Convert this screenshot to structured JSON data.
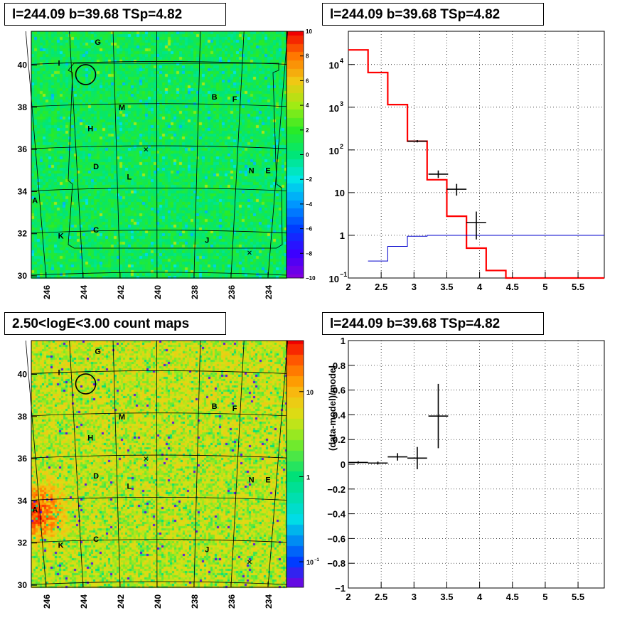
{
  "panels": {
    "map_top": {
      "title": "l=244.09 b=39.68 TSp=4.82",
      "x_ticks": [
        "246",
        "244",
        "242",
        "240",
        "238",
        "236",
        "234"
      ],
      "y_ticks": [
        "30",
        "32",
        "34",
        "36",
        "38",
        "40"
      ],
      "colorbar_ticks": [
        "10",
        "8",
        "6",
        "4",
        "2",
        "0",
        "−2",
        "−4",
        "−6",
        "−8",
        "−10"
      ],
      "source_labels": [
        "G",
        "I",
        "M",
        "B",
        "F",
        "H",
        "D",
        "L",
        "N",
        "E",
        "A",
        "C",
        "K",
        "J"
      ]
    },
    "spectrum": {
      "title": "l=244.09 b=39.68 TSp=4.82",
      "x_ticks": [
        "2",
        "2.5",
        "3",
        "3.5",
        "4",
        "4.5",
        "5",
        "5.5"
      ],
      "y_ticks_exp": [
        "10",
        "10",
        "10",
        "10"
      ],
      "y_ticks_exp_sup": [
        "4",
        "3",
        "2",
        "−1"
      ],
      "y_ticks_plain": [
        "10",
        "1"
      ]
    },
    "map_bottom": {
      "title": "2.50<logE<3.00 count maps",
      "x_ticks": [
        "246",
        "244",
        "242",
        "240",
        "238",
        "236",
        "234"
      ],
      "y_ticks": [
        "30",
        "32",
        "34",
        "36",
        "38",
        "40"
      ],
      "colorbar_ticks": [
        "10",
        "1",
        "10"
      ],
      "colorbar_sup": "−1",
      "source_labels": [
        "G",
        "I",
        "M",
        "B",
        "F",
        "H",
        "D",
        "L",
        "N",
        "E",
        "A",
        "C",
        "K",
        "J"
      ]
    },
    "residual": {
      "title": "l=244.09 b=39.68 TSp=4.82",
      "ylabel": "(data-model)/model",
      "x_ticks": [
        "2",
        "2.5",
        "3",
        "3.5",
        "4",
        "4.5",
        "5",
        "5.5"
      ],
      "y_ticks": [
        "1",
        "0.8",
        "0.6",
        "0.4",
        "0.2",
        "0",
        "−0.2",
        "−0.4",
        "−0.6",
        "−0.8",
        "−1"
      ]
    }
  },
  "colors": {
    "model": "#ff0000",
    "component": "#0000cc",
    "data": "#000000"
  },
  "chart_data": [
    {
      "type": "heatmap",
      "title": "l=244.09 b=39.68 TSp=4.82",
      "xlabel": "",
      "ylabel": "",
      "xlim": [
        246.8,
        233.0
      ],
      "ylim": [
        29.9,
        41.6
      ],
      "z_range": [
        -10,
        10
      ],
      "sources": [
        {
          "label": "G",
          "l": 243.2,
          "b": 41.1
        },
        {
          "label": "I",
          "l": 245.3,
          "b": 40.1
        },
        {
          "label": "M",
          "l": 241.9,
          "b": 38.0
        },
        {
          "label": "B",
          "l": 236.9,
          "b": 38.5
        },
        {
          "label": "F",
          "l": 235.8,
          "b": 38.4
        },
        {
          "label": "H",
          "l": 243.6,
          "b": 37.0
        },
        {
          "label": "D",
          "l": 243.3,
          "b": 35.2
        },
        {
          "label": "L",
          "l": 241.5,
          "b": 34.7
        },
        {
          "label": "N",
          "l": 234.9,
          "b": 35.0
        },
        {
          "label": "E",
          "l": 234.0,
          "b": 35.0
        },
        {
          "label": "A",
          "l": 246.6,
          "b": 33.6
        },
        {
          "label": "C",
          "l": 243.3,
          "b": 32.2
        },
        {
          "label": "K",
          "l": 245.2,
          "b": 31.9
        },
        {
          "label": "J",
          "l": 237.3,
          "b": 31.7
        }
      ],
      "test_position": {
        "l": 244.09,
        "b": 39.68
      }
    },
    {
      "type": "line",
      "title": "l=244.09 b=39.68 TSp=4.82",
      "xlabel": "",
      "ylabel": "",
      "xlim": [
        2,
        5.9
      ],
      "ylim": [
        0.1,
        60000
      ],
      "log_y": true,
      "grid": true,
      "series": [
        {
          "values_x": [
            2,
            2.3,
            2.6,
            2.9,
            3.2,
            3.5,
            3.8,
            4.1,
            4.4,
            5.9
          ],
          "values_y": [
            22000,
            6500,
            1150,
            160,
            20,
            2.8,
            0.5,
            0.15,
            0.1,
            0.1
          ]
        },
        {
          "values_x": [
            2.3,
            2.6,
            2.9,
            3.2,
            5.9
          ],
          "values_y": [
            0.25,
            0.55,
            0.95,
            1.0,
            1.0
          ]
        }
      ],
      "data_points": [
        {
          "x": 3.05,
          "y": 160,
          "dx": 0.15,
          "ylo": 150,
          "yhi": 170
        },
        {
          "x": 3.37,
          "y": 27,
          "dx": 0.15,
          "ylo": 22,
          "yhi": 33
        },
        {
          "x": 3.65,
          "y": 12,
          "dx": 0.15,
          "ylo": 8.5,
          "yhi": 16
        },
        {
          "x": 3.95,
          "y": 2.0,
          "dx": 0.15,
          "ylo": 0.8,
          "yhi": 3.6
        }
      ]
    },
    {
      "type": "heatmap",
      "title": "2.50<logE<3.00 count maps",
      "xlabel": "",
      "ylabel": "",
      "xlim": [
        246.8,
        233.0
      ],
      "ylim": [
        29.9,
        41.6
      ],
      "z_range": [
        0.05,
        40
      ],
      "log_z": true,
      "hotspots": [
        {
          "l": 237.0,
          "b": 38.6
        },
        {
          "l": 246.5,
          "b": 33.5
        }
      ]
    },
    {
      "type": "scatter",
      "title": "l=244.09 b=39.68 TSp=4.82",
      "xlabel": "",
      "ylabel": "(data-model)/model",
      "xlim": [
        2,
        5.9
      ],
      "ylim": [
        -1,
        1
      ],
      "grid": true,
      "points": [
        {
          "x": 2.15,
          "y": 0.015,
          "dx": 0.15,
          "dy": 0.01
        },
        {
          "x": 2.45,
          "y": 0.01,
          "dx": 0.15,
          "dy": 0.012
        },
        {
          "x": 2.75,
          "y": 0.06,
          "dx": 0.15,
          "dy": 0.03
        },
        {
          "x": 3.05,
          "y": 0.05,
          "dx": 0.15,
          "dy": 0.09
        },
        {
          "x": 3.37,
          "y": 0.39,
          "dx": 0.15,
          "dy": 0.26
        }
      ]
    }
  ]
}
